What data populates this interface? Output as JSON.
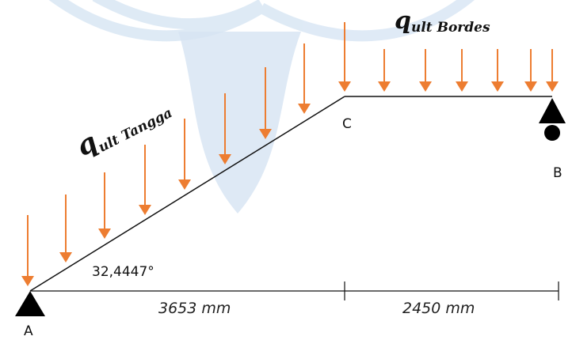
{
  "loads": [
    {
      "symbol": "q",
      "subscript": "ult Tangga"
    },
    {
      "symbol": "q",
      "subscript": "ult Bordes"
    }
  ],
  "nodes": {
    "A": "A",
    "B": "B",
    "C": "C"
  },
  "angle": "32,4447°",
  "dimensions": [
    "3653 mm",
    "2450 mm"
  ]
}
